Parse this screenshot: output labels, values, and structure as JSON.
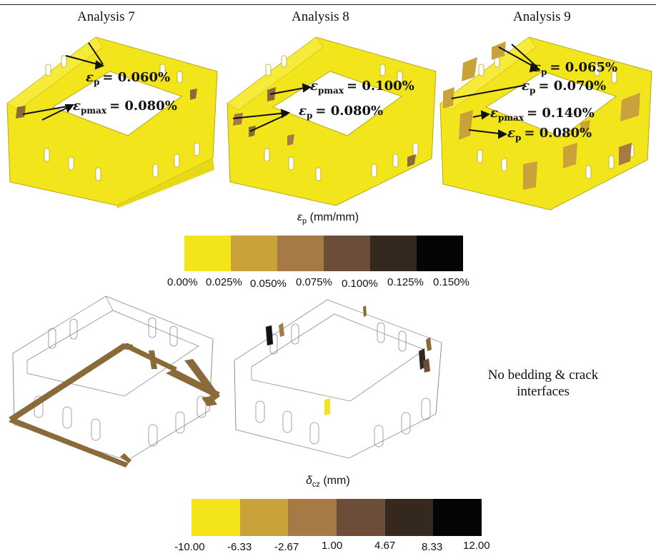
{
  "titles": [
    "Analysis 7",
    "Analysis 8",
    "Analysis 9"
  ],
  "colors": {
    "yellow": "#f2e51b",
    "scale": [
      "#f4e41a",
      "#c9a23a",
      "#a57a45",
      "#6b4d3a",
      "#35281f",
      "#050505"
    ],
    "crack_brown": "#8b6a3a",
    "outline": "#8c8c8c"
  },
  "annotations": {
    "a7": [
      {
        "sym": "ε",
        "sub": "p",
        "val": "= 0.060%"
      },
      {
        "sym": "ε",
        "sub": "pmax",
        "val": "= 0.080%"
      }
    ],
    "a8": [
      {
        "sym": "ε",
        "sub": "pmax",
        "val": "= 0.100%"
      },
      {
        "sym": "ε",
        "sub": "p",
        "val": "= 0.080%"
      }
    ],
    "a9": [
      {
        "sym": "ε",
        "sub": "p",
        "val": "= 0.065%"
      },
      {
        "sym": "ε",
        "sub": "p",
        "val": "= 0.070%"
      },
      {
        "sym": "ε",
        "sub": "pmax",
        "val": "= 0.140%"
      },
      {
        "sym": "ε",
        "sub": "p",
        "val": "= 0.080%"
      }
    ]
  },
  "legend1": {
    "sym": "ε",
    "sub": "p",
    "unit": "(mm/mm)",
    "ticks": [
      "0.00%",
      "0.025%",
      "0.050%",
      "0.075%",
      "0.100%",
      "0.125%",
      "0.150%"
    ]
  },
  "legend2": {
    "sym": "δ",
    "sub": "cz",
    "unit": "(mm)",
    "ticks": [
      "-10.00",
      "-6.33",
      "-2.67",
      "1.00",
      "4.67",
      "8.33",
      "12.00"
    ]
  },
  "note": "No bedding & crack interfaces"
}
